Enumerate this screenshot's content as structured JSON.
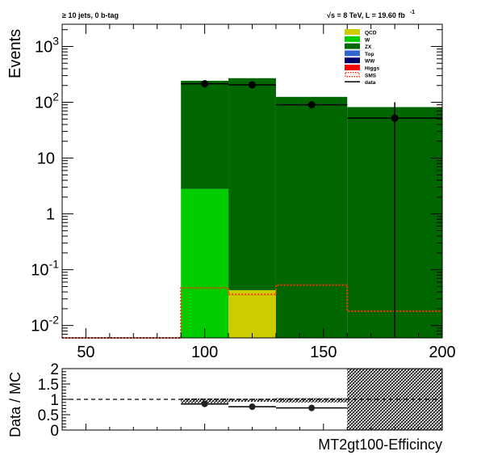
{
  "chart_data": [
    {
      "type": "bar",
      "stacked": true,
      "log_scale_y": true,
      "title_left": "≥ 10 jets, 0 b-tag",
      "title_right_sqrt": "√s",
      "title_right_rest": " = 8 TeV, L = 19.60 fb",
      "title_right_sup": "-1",
      "ylabel": "Events",
      "xlim": [
        40,
        200
      ],
      "ylim": [
        0.006,
        2500
      ],
      "x_ticks": [
        50,
        100,
        150,
        200
      ],
      "x_tick_labels": [
        "50",
        "100",
        "150",
        "200"
      ],
      "y_ticks": [
        {
          "value": 1000,
          "base": "10",
          "exp": "3"
        },
        {
          "value": 100,
          "base": "10",
          "exp": "2"
        },
        {
          "value": 10,
          "base": "10",
          "exp": ""
        },
        {
          "value": 1,
          "base": "1",
          "exp": ""
        },
        {
          "value": 0.1,
          "base": "10",
          "exp": "-1"
        },
        {
          "value": 0.01,
          "base": "10",
          "exp": "-2"
        }
      ],
      "bins": [
        [
          40,
          90
        ],
        [
          90,
          110
        ],
        [
          110,
          130
        ],
        [
          130,
          160
        ],
        [
          160,
          200
        ]
      ],
      "stack": [
        {
          "name": "QCD",
          "color": "#cccc00",
          "values": [
            0,
            0,
            0.043,
            0,
            0
          ]
        },
        {
          "name": "W",
          "color": "#00cc00",
          "values": [
            0,
            2.8,
            0,
            0,
            0
          ]
        },
        {
          "name": "ZX",
          "color": "#006600",
          "values": [
            0,
            240,
            270,
            125,
            82
          ]
        }
      ],
      "sms": {
        "name": "SMS",
        "color": "#ff3300",
        "values": [
          0.006,
          0.047,
          0.036,
          0.053,
          0.018
        ]
      },
      "data": {
        "name": "data",
        "points": [
          {
            "x": 100,
            "y": 215,
            "xerr": [
              90,
              110
            ]
          },
          {
            "x": 120,
            "y": 205,
            "xerr": [
              110,
              130
            ]
          },
          {
            "x": 145,
            "y": 90,
            "xerr": [
              130,
              160
            ]
          },
          {
            "x": 180,
            "y": 52,
            "xerr": [
              160,
              200
            ],
            "yerr": [
              0.006,
              100
            ]
          }
        ]
      },
      "legend": [
        {
          "name": "QCD",
          "color": "#cccc00",
          "style": "fill"
        },
        {
          "name": "W",
          "color": "#00cc00",
          "style": "fill"
        },
        {
          "name": "ZX",
          "color": "#006600",
          "style": "fill"
        },
        {
          "name": "Top",
          "color": "#3366cc",
          "style": "fill"
        },
        {
          "name": "WW",
          "color": "#000066",
          "style": "fill"
        },
        {
          "name": "Higgs",
          "color": "#ff0000",
          "style": "fill"
        },
        {
          "name": "SMS",
          "color": "#ff3300",
          "style": "dotted"
        },
        {
          "name": "data",
          "color": "#000000",
          "style": "line"
        }
      ],
      "legend_position": "top-right"
    },
    {
      "type": "scatter",
      "ylabel": "Data / MC",
      "xlabel": "MT2gt100-Efficincy",
      "xlim": [
        40,
        200
      ],
      "ylim": [
        0,
        2
      ],
      "y_ticks": [
        0,
        0.5,
        1,
        1.5,
        2
      ],
      "y_tick_labels": [
        "0",
        "0.5",
        "1",
        "1.5",
        "2"
      ],
      "reference_line": 1,
      "points": [
        {
          "x": 100,
          "y": 0.85,
          "xerr": [
            90,
            110
          ]
        },
        {
          "x": 120,
          "y": 0.76,
          "xerr": [
            110,
            130
          ]
        },
        {
          "x": 145,
          "y": 0.72,
          "xerr": [
            130,
            160
          ]
        }
      ],
      "uncertainty_band": [
        {
          "x0": 90,
          "x1": 110,
          "lo": 0.88,
          "hi": 1.03
        },
        {
          "x0": 110,
          "x1": 130,
          "lo": 0.92,
          "hi": 1.02
        },
        {
          "x0": 130,
          "x1": 160,
          "lo": 0.9,
          "hi": 1.04
        },
        {
          "x0": 160,
          "x1": 200,
          "lo": 0,
          "hi": 2
        }
      ]
    }
  ]
}
